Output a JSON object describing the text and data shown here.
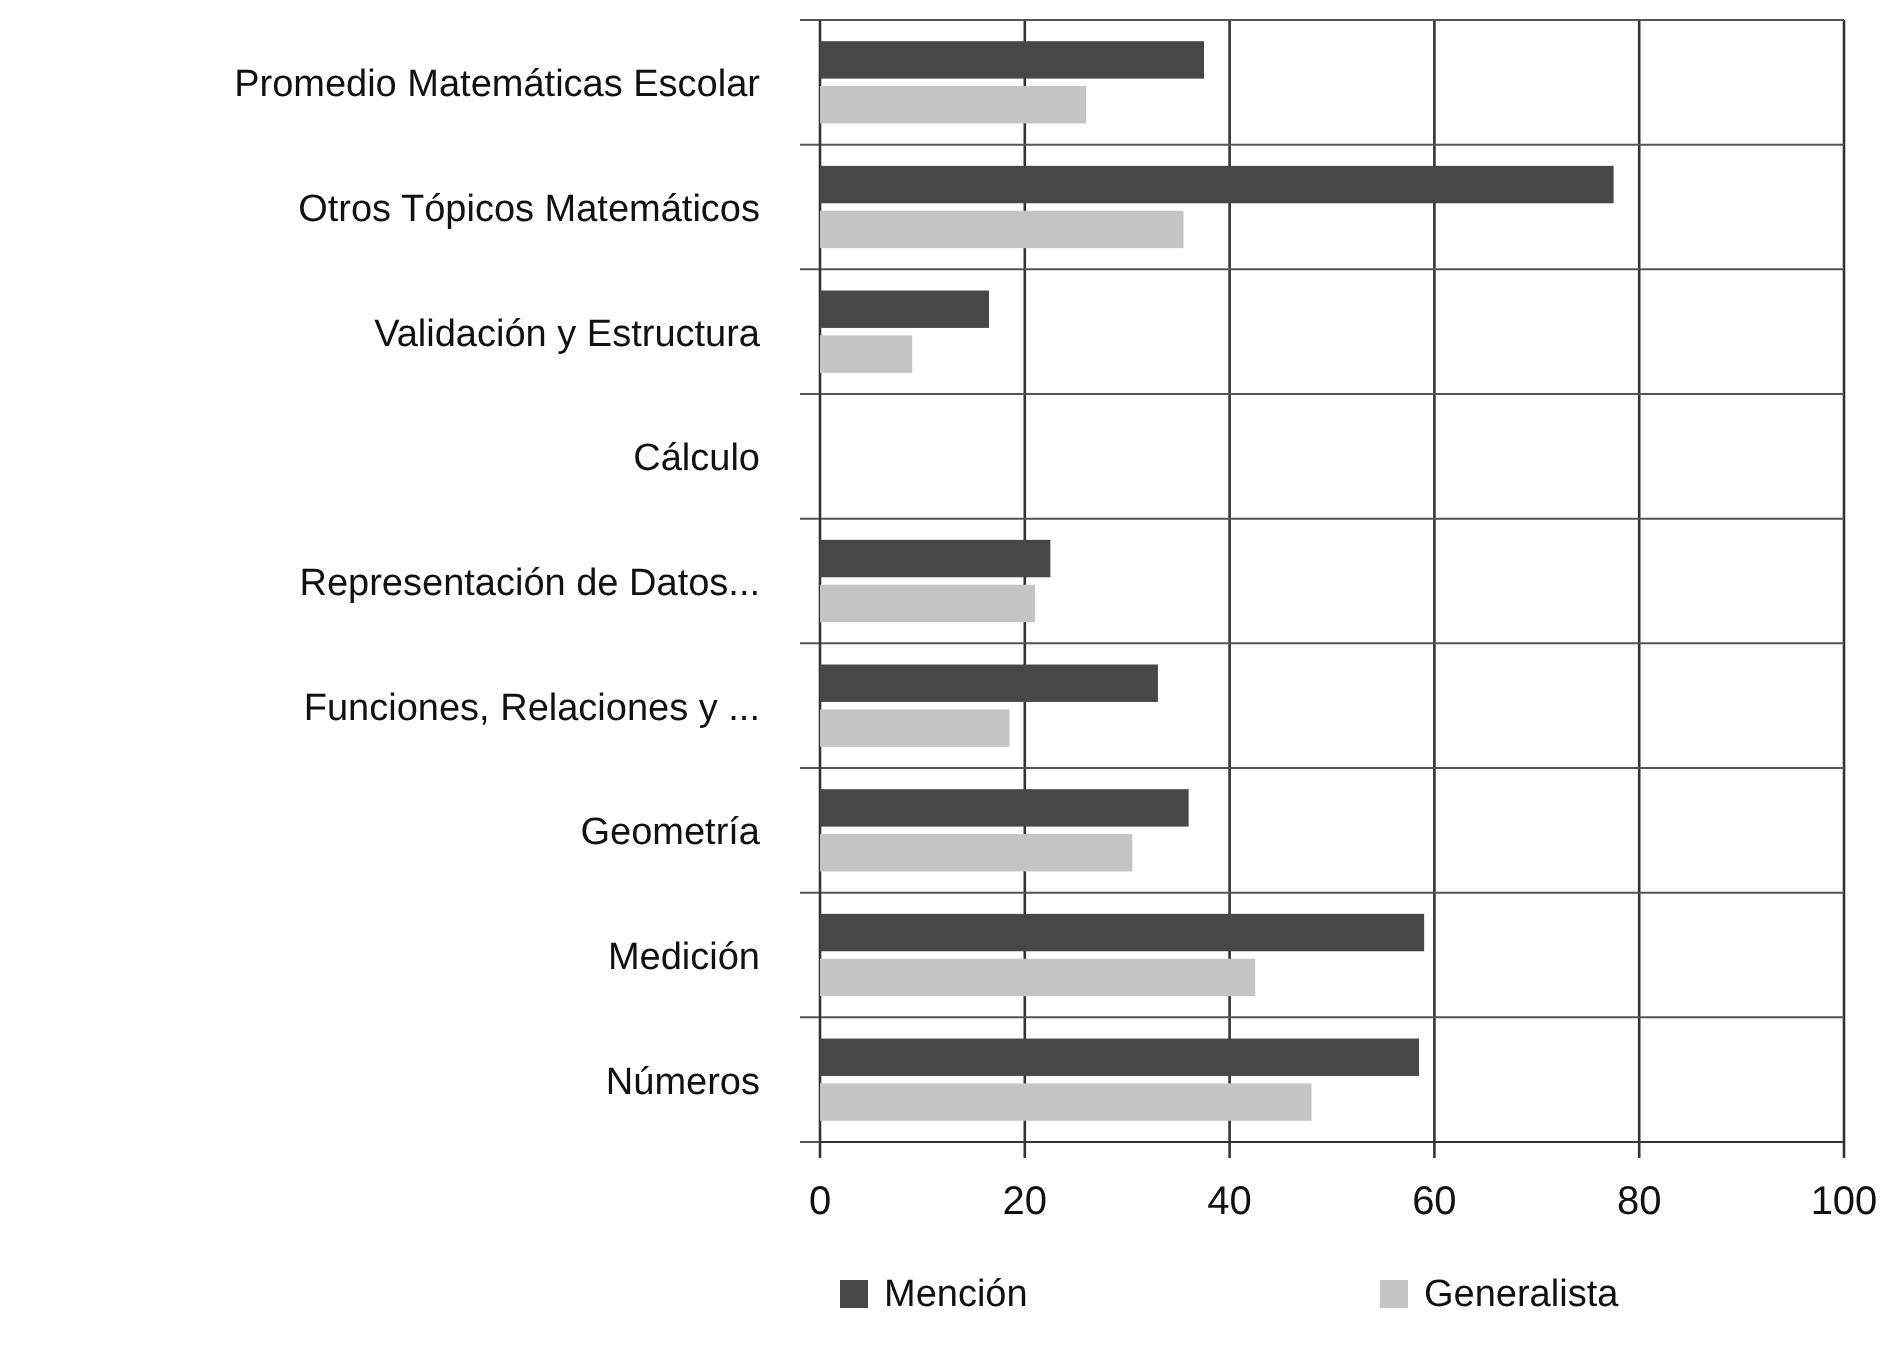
{
  "chart_data": {
    "type": "bar",
    "orientation": "horizontal",
    "categories": [
      "Promedio Matemáticas Escolar",
      "Otros Tópicos Matemáticos",
      "Validación y Estructura",
      "Cálculo",
      "Representación de Datos...",
      "Funciones, Relaciones y ...",
      "Geometría",
      "Medición",
      "Números"
    ],
    "series": [
      {
        "name": "Mención",
        "color": "#474747",
        "values": [
          37.5,
          77.5,
          16.5,
          null,
          22.5,
          33,
          36,
          59,
          58.5
        ]
      },
      {
        "name": "Generalista",
        "color": "#c4c4c4",
        "values": [
          26,
          35.5,
          9,
          null,
          21,
          18.5,
          30.5,
          42.5,
          48
        ]
      }
    ],
    "xlim": [
      0,
      100
    ],
    "xticks": [
      0,
      20,
      40,
      60,
      80,
      100
    ],
    "grid": true,
    "legend": "bottom"
  }
}
